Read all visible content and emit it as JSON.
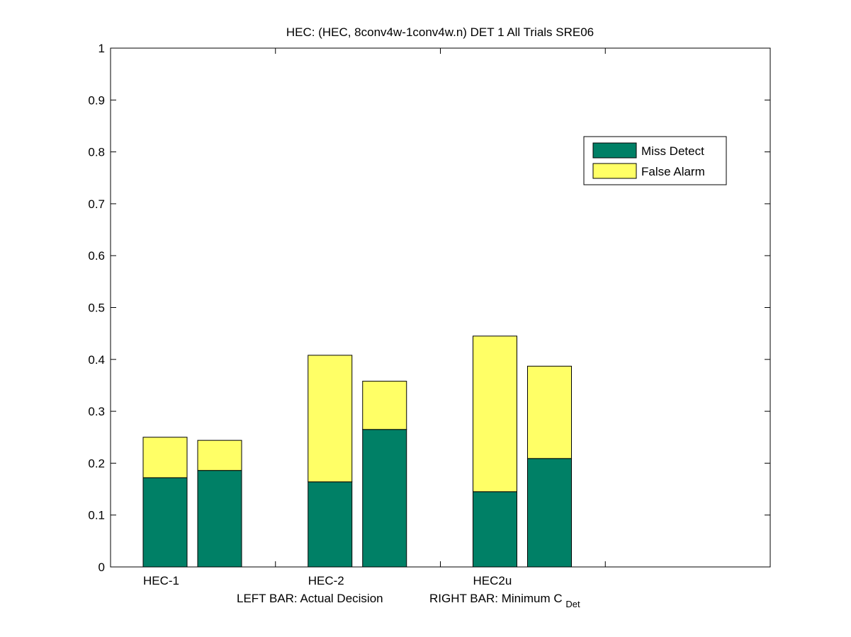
{
  "chart_data": {
    "type": "bar",
    "stacked": true,
    "title": "HEC: (HEC, 8conv4w-1conv4w.n) DET 1 All Trials SRE06",
    "xlabel_parts": {
      "left": "LEFT BAR: Actual Decision",
      "right_prefix": "RIGHT BAR: Minimum C",
      "right_subscript": "Det"
    },
    "ylabel": "",
    "ylim": [
      0,
      1
    ],
    "yticks": [
      "0",
      "0.1",
      "0.2",
      "0.3",
      "0.4",
      "0.5",
      "0.6",
      "0.7",
      "0.8",
      "0.9",
      "1"
    ],
    "categories": [
      "HEC-1",
      "HEC-2",
      "HEC2u"
    ],
    "bar_roles": [
      "Actual Decision",
      "Minimum C_Det"
    ],
    "series": [
      {
        "name": "Miss Detect",
        "color": "#008066",
        "values": [
          [
            0.172,
            0.186
          ],
          [
            0.164,
            0.265
          ],
          [
            0.145,
            0.209
          ]
        ]
      },
      {
        "name": "False Alarm",
        "color": "#ffff66",
        "values": [
          [
            0.078,
            0.058
          ],
          [
            0.244,
            0.093
          ],
          [
            0.3,
            0.178
          ]
        ]
      }
    ],
    "legend_position": "top-right",
    "grid": false
  }
}
